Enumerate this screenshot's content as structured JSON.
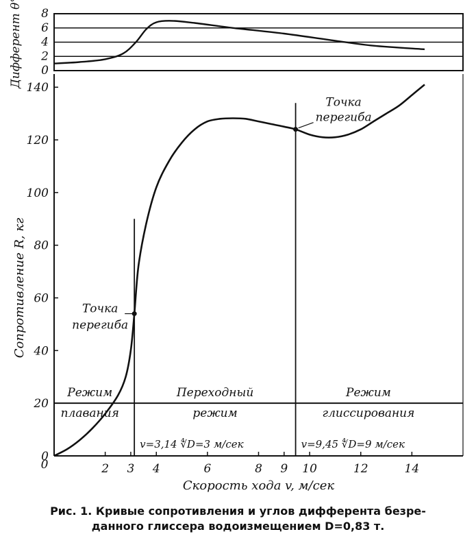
{
  "chart_data": [
    {
      "type": "line",
      "id": "trim",
      "ylabel": "Дифферент θ°",
      "yticks": [
        0,
        2,
        4,
        6,
        8
      ],
      "ylim": [
        0,
        8
      ],
      "xlim": [
        0,
        16
      ],
      "grid": "horizontal",
      "series": [
        {
          "x": [
            0,
            1,
            2,
            2.7,
            3.2,
            3.6,
            4.0,
            4.6,
            5.5,
            7,
            9,
            11,
            12.5,
            14.5
          ],
          "y": [
            1.0,
            1.2,
            1.6,
            2.4,
            4.0,
            5.8,
            6.8,
            7.0,
            6.7,
            6.0,
            5.2,
            4.2,
            3.5,
            3.0
          ]
        }
      ]
    },
    {
      "type": "line",
      "id": "resistance",
      "ylabel": "Сопротивление R, кг",
      "xlabel": "Скорость хода v, м/сек",
      "yticks": [
        0,
        20,
        40,
        60,
        80,
        100,
        120,
        140
      ],
      "xticks": [
        2,
        3,
        4,
        6,
        8,
        9,
        10,
        12,
        14
      ],
      "ylim": [
        0,
        145
      ],
      "xlim": [
        0,
        16
      ],
      "series": [
        {
          "x": [
            0,
            0.5,
            1,
            1.5,
            2,
            2.5,
            2.8,
            3.0,
            3.14,
            3.3,
            3.6,
            4,
            4.5,
            5,
            5.5,
            6,
            6.5,
            7,
            7.5,
            8,
            8.5,
            9,
            9.45,
            10,
            10.5,
            11,
            11.5,
            12,
            12.5,
            13,
            13.5,
            14,
            14.5
          ],
          "y": [
            0,
            2.5,
            6,
            10.5,
            16,
            23,
            30,
            40,
            54,
            72,
            88,
            102,
            112,
            119,
            124,
            127,
            128,
            128.2,
            128,
            127,
            126,
            125,
            124,
            122,
            121,
            121,
            122,
            124,
            127,
            130,
            133,
            137,
            141
          ]
        }
      ],
      "inflection_points": [
        {
          "x": 3.14,
          "y": 54,
          "label": [
            "Точка",
            "перегиба"
          ]
        },
        {
          "x": 9.45,
          "y": 124,
          "label": [
            "Точка",
            "перегиба"
          ]
        }
      ],
      "vlines": [
        {
          "x": 3.14,
          "formula": "v=3,14 ∜D=3 м/сек"
        },
        {
          "x": 9.45,
          "formula": "v=9,45 ∜D=9 м/сек"
        }
      ],
      "hline": 20,
      "regions": [
        {
          "lines": [
            "Режим",
            "плавания"
          ],
          "x": 1.4
        },
        {
          "lines": [
            "Переходный",
            "режим"
          ],
          "x": 6.3
        },
        {
          "lines": [
            "Режим",
            "глиссирования"
          ],
          "x": 12.3
        }
      ]
    }
  ],
  "caption": {
    "line1": "Рис. 1. Кривые сопротивления и углов дифферента безре-",
    "line2": "данного глиссера водоизмещением D=0,83 т."
  }
}
